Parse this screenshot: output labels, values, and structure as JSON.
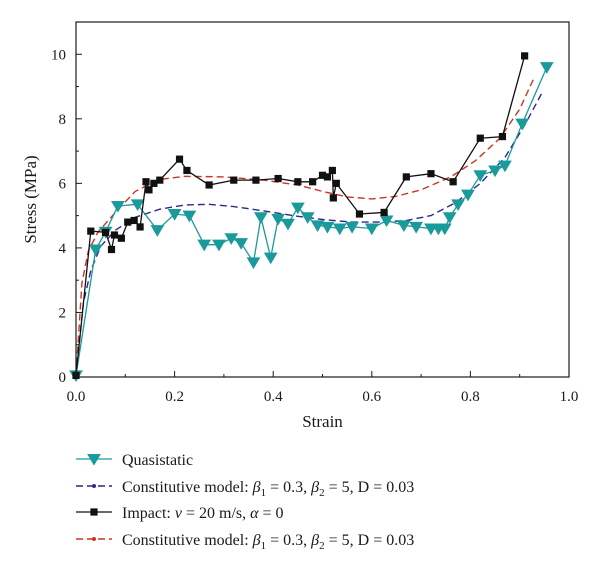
{
  "chart_data": {
    "type": "line",
    "xlabel": "Strain",
    "ylabel": "Stress (MPa)",
    "xlim": [
      0.0,
      1.0
    ],
    "ylim": [
      0,
      11
    ],
    "x_ticks": [
      "0.0",
      "0.2",
      "0.4",
      "0.6",
      "0.8",
      "1.0"
    ],
    "y_ticks": [
      "0",
      "2",
      "4",
      "6",
      "8",
      "10"
    ],
    "grid": false,
    "legend_position": "bottom",
    "series": [
      {
        "key": "quasistatic",
        "name": "Quasistatic",
        "style": "line-triangle",
        "color": "#1a9a9a",
        "points": [
          [
            0.0,
            0.05
          ],
          [
            0.04,
            3.95
          ],
          [
            0.06,
            4.5
          ],
          [
            0.085,
            5.3
          ],
          [
            0.125,
            5.35
          ],
          [
            0.165,
            4.55
          ],
          [
            0.2,
            5.05
          ],
          [
            0.23,
            5.0
          ],
          [
            0.26,
            4.1
          ],
          [
            0.29,
            4.1
          ],
          [
            0.315,
            4.3
          ],
          [
            0.335,
            4.15
          ],
          [
            0.36,
            3.55
          ],
          [
            0.375,
            4.95
          ],
          [
            0.395,
            3.7
          ],
          [
            0.41,
            4.9
          ],
          [
            0.43,
            4.75
          ],
          [
            0.45,
            5.25
          ],
          [
            0.47,
            4.95
          ],
          [
            0.49,
            4.7
          ],
          [
            0.51,
            4.65
          ],
          [
            0.535,
            4.6
          ],
          [
            0.56,
            4.65
          ],
          [
            0.6,
            4.6
          ],
          [
            0.63,
            4.85
          ],
          [
            0.665,
            4.7
          ],
          [
            0.69,
            4.65
          ],
          [
            0.72,
            4.6
          ],
          [
            0.735,
            4.6
          ],
          [
            0.748,
            4.6
          ],
          [
            0.758,
            4.95
          ],
          [
            0.775,
            5.35
          ],
          [
            0.795,
            5.65
          ],
          [
            0.82,
            6.25
          ],
          [
            0.85,
            6.4
          ],
          [
            0.87,
            6.55
          ],
          [
            0.905,
            7.85
          ],
          [
            0.955,
            9.6
          ]
        ]
      },
      {
        "key": "model_quasistatic",
        "name": "Constitutive model: β1 = 0.3, β2 = 5, D = 0.03",
        "style": "dashed",
        "color": "#2a2a8c",
        "points": [
          [
            0.0,
            0.05
          ],
          [
            0.015,
            2.3
          ],
          [
            0.03,
            3.3
          ],
          [
            0.05,
            4.05
          ],
          [
            0.08,
            4.55
          ],
          [
            0.12,
            4.95
          ],
          [
            0.17,
            5.2
          ],
          [
            0.22,
            5.33
          ],
          [
            0.27,
            5.35
          ],
          [
            0.32,
            5.28
          ],
          [
            0.38,
            5.15
          ],
          [
            0.44,
            5.0
          ],
          [
            0.5,
            4.88
          ],
          [
            0.56,
            4.8
          ],
          [
            0.62,
            4.8
          ],
          [
            0.67,
            4.85
          ],
          [
            0.72,
            5.0
          ],
          [
            0.77,
            5.4
          ],
          [
            0.82,
            6.0
          ],
          [
            0.87,
            6.8
          ],
          [
            0.91,
            7.8
          ],
          [
            0.945,
            8.8
          ]
        ]
      },
      {
        "key": "impact",
        "name": "Impact: ν = 20 m/s, α = 0",
        "style": "line-square",
        "color": "#111111",
        "points": [
          [
            0.0,
            0.05
          ],
          [
            0.03,
            4.52
          ],
          [
            0.06,
            4.48
          ],
          [
            0.072,
            3.95
          ],
          [
            0.078,
            4.4
          ],
          [
            0.092,
            4.3
          ],
          [
            0.105,
            4.8
          ],
          [
            0.118,
            4.85
          ],
          [
            0.13,
            4.65
          ],
          [
            0.142,
            6.05
          ],
          [
            0.148,
            5.8
          ],
          [
            0.158,
            6.0
          ],
          [
            0.17,
            6.1
          ],
          [
            0.21,
            6.75
          ],
          [
            0.225,
            6.4
          ],
          [
            0.27,
            5.95
          ],
          [
            0.32,
            6.1
          ],
          [
            0.365,
            6.1
          ],
          [
            0.41,
            6.15
          ],
          [
            0.45,
            6.05
          ],
          [
            0.48,
            6.05
          ],
          [
            0.5,
            6.25
          ],
          [
            0.51,
            6.2
          ],
          [
            0.52,
            6.4
          ],
          [
            0.522,
            5.55
          ],
          [
            0.528,
            6.0
          ],
          [
            0.575,
            5.05
          ],
          [
            0.625,
            5.1
          ],
          [
            0.67,
            6.2
          ],
          [
            0.72,
            6.3
          ],
          [
            0.765,
            6.05
          ],
          [
            0.82,
            7.4
          ],
          [
            0.865,
            7.45
          ],
          [
            0.91,
            9.95
          ]
        ]
      },
      {
        "key": "model_impact",
        "name": "Constitutive model: β1 = 0.3, β2 = 5, D = 0.03",
        "style": "dashed",
        "color": "#cc3322",
        "points": [
          [
            0.0,
            0.05
          ],
          [
            0.012,
            2.9
          ],
          [
            0.025,
            3.9
          ],
          [
            0.045,
            4.5
          ],
          [
            0.08,
            5.1
          ],
          [
            0.12,
            5.75
          ],
          [
            0.17,
            6.12
          ],
          [
            0.22,
            6.22
          ],
          [
            0.3,
            6.2
          ],
          [
            0.38,
            6.1
          ],
          [
            0.45,
            5.95
          ],
          [
            0.5,
            5.75
          ],
          [
            0.55,
            5.58
          ],
          [
            0.6,
            5.52
          ],
          [
            0.65,
            5.6
          ],
          [
            0.7,
            5.8
          ],
          [
            0.76,
            6.2
          ],
          [
            0.81,
            6.7
          ],
          [
            0.86,
            7.4
          ],
          [
            0.9,
            8.3
          ],
          [
            0.93,
            9.3
          ]
        ]
      }
    ],
    "legend": [
      {
        "series": "quasistatic",
        "text": "Quasistatic"
      },
      {
        "series": "model_quasistatic",
        "text_prefix": "Constitutive model: ",
        "beta": "β",
        "sub1": "1",
        "mid1": " = 0.3, ",
        "sub2": "2",
        "tail": " = 5, D = 0.03"
      },
      {
        "series": "impact",
        "text_prefix": "Impact: ",
        "nu": "ν",
        "mid": " = 20 m/s, ",
        "alpha": "α",
        "tail": " = 0"
      },
      {
        "series": "model_impact",
        "text_prefix": "Constitutive model: ",
        "beta": "β",
        "sub1": "1",
        "mid1": " = 0.3, ",
        "sub2": "2",
        "tail": " = 5, D = 0.03"
      }
    ]
  }
}
